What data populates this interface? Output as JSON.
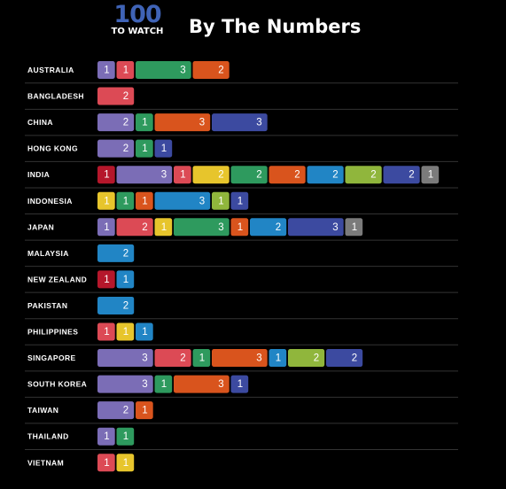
{
  "header": {
    "logo_number": "100",
    "logo_caption": "TO WATCH",
    "title": "By The Numbers"
  },
  "colors": {
    "background": "#000000",
    "text": "#ffffff",
    "divider": "#333333",
    "palette": [
      "#b5172b",
      "#7b6db6",
      "#dc4a55",
      "#2e9a5e",
      "#d9541d",
      "#3c4aa0",
      "#e7c52c",
      "#2185c5",
      "#90b63c",
      "#7b7b7b"
    ]
  },
  "chart_data": {
    "type": "bar",
    "rows": [
      {
        "category": "AUSTRALIA",
        "segments": [
          {
            "value": 1,
            "color": "#7b6db6"
          },
          {
            "value": 1,
            "color": "#dc4a55"
          },
          {
            "value": 3,
            "color": "#2e9a5e"
          },
          {
            "value": 2,
            "color": "#d9541d"
          }
        ]
      },
      {
        "category": "BANGLADESH",
        "segments": [
          {
            "value": 2,
            "color": "#dc4a55"
          }
        ]
      },
      {
        "category": "CHINA",
        "segments": [
          {
            "value": 2,
            "color": "#7b6db6"
          },
          {
            "value": 1,
            "color": "#2e9a5e"
          },
          {
            "value": 3,
            "color": "#d9541d"
          },
          {
            "value": 3,
            "color": "#3c4aa0"
          }
        ]
      },
      {
        "category": "HONG KONG",
        "segments": [
          {
            "value": 2,
            "color": "#7b6db6"
          },
          {
            "value": 1,
            "color": "#2e9a5e"
          },
          {
            "value": 1,
            "color": "#3c4aa0"
          }
        ]
      },
      {
        "category": "INDIA",
        "segments": [
          {
            "value": 1,
            "color": "#b5172b"
          },
          {
            "value": 3,
            "color": "#7b6db6"
          },
          {
            "value": 1,
            "color": "#dc4a55"
          },
          {
            "value": 2,
            "color": "#e7c52c"
          },
          {
            "value": 2,
            "color": "#2e9a5e"
          },
          {
            "value": 2,
            "color": "#d9541d"
          },
          {
            "value": 2,
            "color": "#2185c5"
          },
          {
            "value": 2,
            "color": "#90b63c"
          },
          {
            "value": 2,
            "color": "#3c4aa0"
          },
          {
            "value": 1,
            "color": "#7b7b7b"
          }
        ]
      },
      {
        "category": "INDONESIA",
        "segments": [
          {
            "value": 1,
            "color": "#e7c52c"
          },
          {
            "value": 1,
            "color": "#2e9a5e"
          },
          {
            "value": 1,
            "color": "#d9541d"
          },
          {
            "value": 3,
            "color": "#2185c5"
          },
          {
            "value": 1,
            "color": "#90b63c"
          },
          {
            "value": 1,
            "color": "#3c4aa0"
          }
        ]
      },
      {
        "category": "JAPAN",
        "segments": [
          {
            "value": 1,
            "color": "#7b6db6"
          },
          {
            "value": 2,
            "color": "#dc4a55"
          },
          {
            "value": 1,
            "color": "#e7c52c"
          },
          {
            "value": 3,
            "color": "#2e9a5e"
          },
          {
            "value": 1,
            "color": "#d9541d"
          },
          {
            "value": 2,
            "color": "#2185c5"
          },
          {
            "value": 3,
            "color": "#3c4aa0"
          },
          {
            "value": 1,
            "color": "#7b7b7b"
          }
        ]
      },
      {
        "category": "MALAYSIA",
        "segments": [
          {
            "value": 2,
            "color": "#2185c5"
          }
        ]
      },
      {
        "category": "NEW ZEALAND",
        "segments": [
          {
            "value": 1,
            "color": "#b5172b"
          },
          {
            "value": 1,
            "color": "#2185c5"
          }
        ]
      },
      {
        "category": "PAKISTAN",
        "segments": [
          {
            "value": 2,
            "color": "#2185c5"
          }
        ]
      },
      {
        "category": "PHILIPPINES",
        "segments": [
          {
            "value": 1,
            "color": "#dc4a55"
          },
          {
            "value": 1,
            "color": "#e7c52c"
          },
          {
            "value": 1,
            "color": "#2185c5"
          }
        ]
      },
      {
        "category": "SINGAPORE",
        "segments": [
          {
            "value": 3,
            "color": "#7b6db6"
          },
          {
            "value": 2,
            "color": "#dc4a55"
          },
          {
            "value": 1,
            "color": "#2e9a5e"
          },
          {
            "value": 3,
            "color": "#d9541d"
          },
          {
            "value": 1,
            "color": "#2185c5"
          },
          {
            "value": 2,
            "color": "#90b63c"
          },
          {
            "value": 2,
            "color": "#3c4aa0"
          }
        ]
      },
      {
        "category": "SOUTH KOREA",
        "segments": [
          {
            "value": 3,
            "color": "#7b6db6"
          },
          {
            "value": 1,
            "color": "#2e9a5e"
          },
          {
            "value": 3,
            "color": "#d9541d"
          },
          {
            "value": 1,
            "color": "#3c4aa0"
          }
        ]
      },
      {
        "category": "TAIWAN",
        "segments": [
          {
            "value": 2,
            "color": "#7b6db6"
          },
          {
            "value": 1,
            "color": "#d9541d"
          }
        ]
      },
      {
        "category": "THAILAND",
        "segments": [
          {
            "value": 1,
            "color": "#7b6db6"
          },
          {
            "value": 1,
            "color": "#2e9a5e"
          }
        ]
      },
      {
        "category": "VIETNAM",
        "segments": [
          {
            "value": 1,
            "color": "#dc4a55"
          },
          {
            "value": 1,
            "color": "#e7c52c"
          }
        ]
      }
    ]
  }
}
